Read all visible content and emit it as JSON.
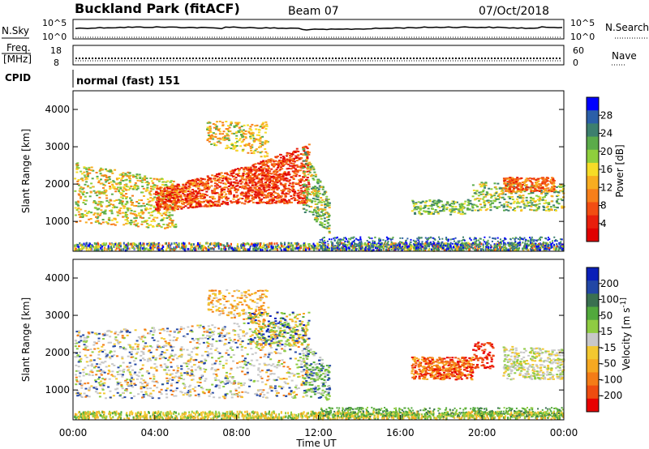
{
  "header": {
    "station": "Buckland Park (fitACF)",
    "beam": "Beam 07",
    "date": "07/Oct/2018"
  },
  "noise_panel": {
    "left_label": "N.Sky",
    "left_ticks": [
      "10^5",
      "10^0"
    ],
    "right_label": "N.Search",
    "right_ticks": [
      "10^5",
      "10^0"
    ]
  },
  "freq_panel": {
    "left_label_1": "Freq.",
    "left_label_2": "[MHz]",
    "left_ticks": [
      "18",
      "8"
    ],
    "right_label": "Nave",
    "right_ticks": [
      "60",
      "0"
    ]
  },
  "cpid_panel": {
    "label": "CPID",
    "mode_text": "normal (fast) 151"
  },
  "chart_data": [
    {
      "type": "heatmap",
      "name": "power",
      "ylabel": "Slant Range [km]",
      "xlabel": "",
      "y_ticks": [
        1000,
        2000,
        3000,
        4000
      ],
      "ylim": [
        200,
        4500
      ],
      "xlim": [
        0,
        24
      ],
      "colorbar": {
        "label": "Power [dB]",
        "ticks": [
          "4",
          "8",
          "12",
          "16",
          "20",
          "24",
          "28"
        ],
        "colors": [
          "#0000ff",
          "#2b5fa8",
          "#3d7f6e",
          "#5bab4a",
          "#8fcf3d",
          "#f6dc27",
          "#f8ad20",
          "#f77f1a",
          "#f24d12",
          "#e81f0c",
          "#e00000"
        ]
      }
    },
    {
      "type": "heatmap",
      "name": "velocity",
      "ylabel": "Slant Range [km]",
      "xlabel": "Time UT",
      "y_ticks": [
        1000,
        2000,
        3000,
        4000
      ],
      "ylim": [
        200,
        4500
      ],
      "xlim": [
        0,
        24
      ],
      "x_ticks": [
        "00:00",
        "04:00",
        "08:00",
        "12:00",
        "16:00",
        "20:00",
        "00:00"
      ],
      "colorbar": {
        "label": "Velocity [m s^-1]",
        "ticks": [
          "200",
          "100",
          "50",
          "15",
          "-15",
          "-50",
          "-100",
          "-200"
        ],
        "colors": [
          "#0a1fb8",
          "#2247a5",
          "#3a7050",
          "#52a93c",
          "#8fcc42",
          "#c8c8c8",
          "#f3c830",
          "#f6a821",
          "#f47c17",
          "#ee4c10",
          "#e80000"
        ]
      }
    }
  ]
}
